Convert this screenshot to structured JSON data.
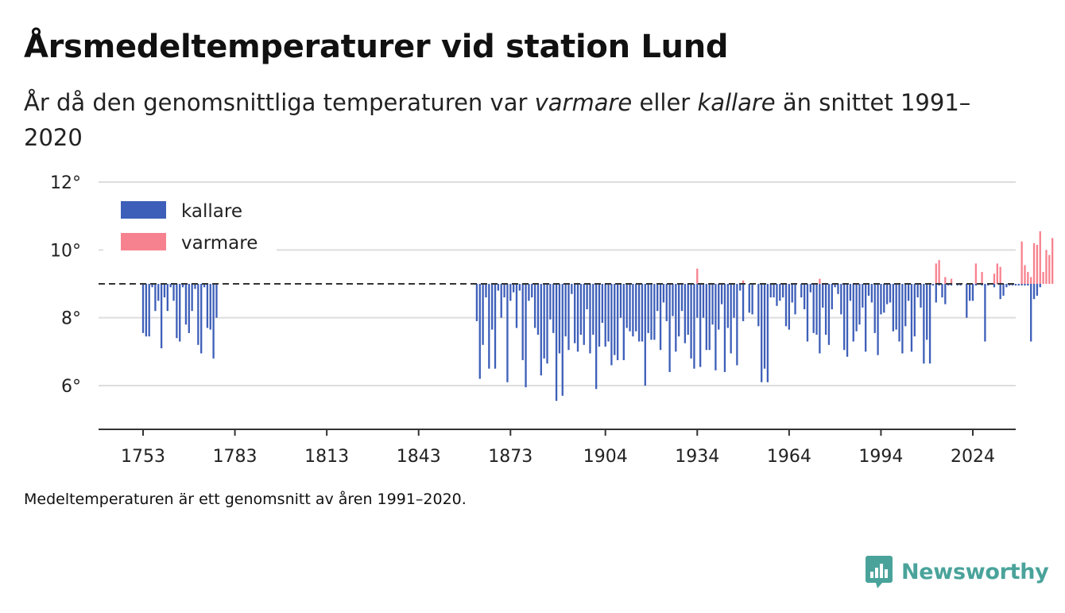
{
  "chart_data": {
    "type": "bar",
    "title": "Årsmedeltemperaturer vid station Lund",
    "subtitle_parts": [
      "År då den genomsnittliga temperaturen var ",
      "varmare",
      " eller ",
      "kallare",
      " än snittet 1991–2020"
    ],
    "footnote": "Medeltemperaturen är ett genomsnitt av åren 1991–2020.",
    "baseline": 9.0,
    "ylim": [
      4.8,
      12.3
    ],
    "yticks": [
      6,
      8,
      10,
      12
    ],
    "ytick_labels": [
      "6°",
      "8°",
      "10°",
      "12°"
    ],
    "xlim": [
      1739,
      2039
    ],
    "xticks": [
      1753,
      1783,
      1813,
      1843,
      1873,
      1904,
      1934,
      1964,
      1994,
      2024
    ],
    "xtick_labels": [
      "1753",
      "1783",
      "1813",
      "1843",
      "1873",
      "1904",
      "1934",
      "1964",
      "1994",
      "2024"
    ],
    "grid": true,
    "legend_placement": "top-left",
    "colors": {
      "kallare": "#3e5fb9",
      "varmare": "#f7828f",
      "baseline": "#333333",
      "grid": "#dddddd"
    },
    "legend": [
      "kallare",
      "varmare"
    ],
    "series": [
      {
        "name": "kallare",
        "color": "#3e5fb9",
        "points": [
          [
            1753,
            7.55
          ],
          [
            1754,
            7.45
          ],
          [
            1755,
            7.45
          ],
          [
            1756,
            8.9
          ],
          [
            1757,
            8.2
          ],
          [
            1758,
            8.5
          ],
          [
            1759,
            7.1
          ],
          [
            1760,
            8.6
          ],
          [
            1761,
            8.2
          ],
          [
            1762,
            8.9
          ],
          [
            1763,
            8.5
          ],
          [
            1764,
            7.4
          ],
          [
            1765,
            7.3
          ],
          [
            1766,
            8.9
          ],
          [
            1767,
            7.8
          ],
          [
            1768,
            7.55
          ],
          [
            1769,
            8.2
          ],
          [
            1770,
            8.85
          ],
          [
            1771,
            7.2
          ],
          [
            1772,
            6.95
          ],
          [
            1773,
            8.9
          ],
          [
            1774,
            7.7
          ],
          [
            1775,
            7.65
          ],
          [
            1776,
            6.8
          ],
          [
            1777,
            8.0
          ],
          [
            1862,
            7.9
          ],
          [
            1863,
            6.2
          ],
          [
            1864,
            7.2
          ],
          [
            1865,
            8.6
          ],
          [
            1866,
            6.5
          ],
          [
            1867,
            7.65
          ],
          [
            1868,
            6.5
          ],
          [
            1869,
            8.8
          ],
          [
            1870,
            8.0
          ],
          [
            1871,
            8.6
          ],
          [
            1872,
            6.1
          ],
          [
            1873,
            8.5
          ],
          [
            1874,
            8.75
          ],
          [
            1875,
            7.7
          ],
          [
            1876,
            8.8
          ],
          [
            1877,
            6.75
          ],
          [
            1878,
            5.95
          ],
          [
            1879,
            8.5
          ],
          [
            1880,
            8.6
          ],
          [
            1881,
            7.7
          ],
          [
            1882,
            7.5
          ],
          [
            1883,
            6.3
          ],
          [
            1884,
            6.8
          ],
          [
            1885,
            6.65
          ],
          [
            1886,
            7.95
          ],
          [
            1887,
            7.55
          ],
          [
            1888,
            5.55
          ],
          [
            1889,
            6.95
          ],
          [
            1890,
            5.7
          ],
          [
            1891,
            7.45
          ],
          [
            1892,
            7.05
          ],
          [
            1893,
            8.7
          ],
          [
            1894,
            7.25
          ],
          [
            1895,
            7.0
          ],
          [
            1896,
            7.5
          ],
          [
            1897,
            7.2
          ],
          [
            1898,
            8.25
          ],
          [
            1899,
            6.95
          ],
          [
            1900,
            7.5
          ],
          [
            1901,
            5.9
          ],
          [
            1902,
            7.15
          ],
          [
            1903,
            7.85
          ],
          [
            1904,
            7.15
          ],
          [
            1905,
            7.3
          ],
          [
            1906,
            6.6
          ],
          [
            1907,
            6.9
          ],
          [
            1908,
            6.75
          ],
          [
            1909,
            8.0
          ],
          [
            1910,
            6.75
          ],
          [
            1911,
            7.7
          ],
          [
            1912,
            7.6
          ],
          [
            1913,
            7.45
          ],
          [
            1914,
            7.6
          ],
          [
            1915,
            7.3
          ],
          [
            1916,
            7.3
          ],
          [
            1917,
            6.0
          ],
          [
            1918,
            7.55
          ],
          [
            1919,
            7.35
          ],
          [
            1920,
            7.35
          ],
          [
            1921,
            8.2
          ],
          [
            1922,
            7.05
          ],
          [
            1923,
            8.45
          ],
          [
            1924,
            7.9
          ],
          [
            1925,
            6.4
          ],
          [
            1926,
            8.05
          ],
          [
            1927,
            7.0
          ],
          [
            1928,
            7.45
          ],
          [
            1929,
            8.2
          ],
          [
            1930,
            7.25
          ],
          [
            1931,
            7.5
          ],
          [
            1932,
            6.8
          ],
          [
            1933,
            6.5
          ],
          [
            1934,
            8.0
          ],
          [
            1935,
            6.55
          ],
          [
            1936,
            8.0
          ],
          [
            1937,
            7.05
          ],
          [
            1938,
            7.05
          ],
          [
            1939,
            7.8
          ],
          [
            1940,
            6.45
          ],
          [
            1941,
            7.65
          ],
          [
            1942,
            8.4
          ],
          [
            1943,
            6.4
          ],
          [
            1944,
            7.7
          ],
          [
            1945,
            6.95
          ],
          [
            1946,
            8.0
          ],
          [
            1947,
            6.6
          ],
          [
            1948,
            8.8
          ],
          [
            1949,
            7.9
          ],
          [
            1951,
            8.15
          ],
          [
            1952,
            8.1
          ],
          [
            1954,
            7.75
          ],
          [
            1955,
            6.1
          ],
          [
            1956,
            6.5
          ],
          [
            1957,
            6.1
          ],
          [
            1958,
            8.6
          ],
          [
            1959,
            8.6
          ],
          [
            1960,
            8.35
          ],
          [
            1961,
            8.5
          ],
          [
            1962,
            8.6
          ],
          [
            1963,
            7.75
          ],
          [
            1964,
            7.65
          ],
          [
            1965,
            8.45
          ],
          [
            1966,
            8.1
          ],
          [
            1968,
            8.6
          ],
          [
            1969,
            8.25
          ],
          [
            1970,
            7.3
          ],
          [
            1971,
            8.75
          ],
          [
            1972,
            7.55
          ],
          [
            1973,
            7.5
          ],
          [
            1974,
            6.95
          ],
          [
            1975,
            8.3
          ],
          [
            1976,
            7.5
          ],
          [
            1977,
            7.2
          ],
          [
            1978,
            8.25
          ],
          [
            1979,
            8.9
          ],
          [
            1980,
            8.7
          ],
          [
            1981,
            8.1
          ],
          [
            1982,
            7.05
          ],
          [
            1983,
            6.85
          ],
          [
            1984,
            8.5
          ],
          [
            1985,
            7.3
          ],
          [
            1986,
            7.6
          ],
          [
            1987,
            7.8
          ],
          [
            1988,
            8.3
          ],
          [
            1989,
            7.0
          ],
          [
            1990,
            8.65
          ],
          [
            1991,
            8.45
          ],
          [
            1992,
            7.55
          ],
          [
            1993,
            6.9
          ],
          [
            1994,
            8.1
          ],
          [
            1995,
            8.15
          ],
          [
            1996,
            8.4
          ],
          [
            1997,
            8.45
          ],
          [
            1998,
            7.6
          ],
          [
            1999,
            7.65
          ],
          [
            2000,
            7.3
          ],
          [
            2001,
            6.95
          ],
          [
            2002,
            7.75
          ],
          [
            2003,
            8.5
          ],
          [
            2004,
            7.0
          ],
          [
            2005,
            7.45
          ],
          [
            2006,
            8.6
          ],
          [
            2007,
            8.3
          ],
          [
            2008,
            6.65
          ],
          [
            2009,
            7.35
          ],
          [
            2010,
            6.65
          ],
          [
            2011,
            8.95
          ],
          [
            2012,
            8.45
          ],
          [
            2013,
            8.95
          ],
          [
            2014,
            8.6
          ],
          [
            2015,
            8.4
          ],
          [
            2016,
            8.95
          ],
          [
            2017,
            8.95
          ],
          [
            2019,
            8.95
          ],
          [
            2020,
            8.95
          ],
          [
            2022,
            8.0
          ],
          [
            2023,
            8.5
          ],
          [
            2024,
            8.5
          ],
          [
            2025,
            8.95
          ],
          [
            2027,
            8.95
          ],
          [
            2028,
            7.3
          ],
          [
            2029,
            8.95
          ],
          [
            2031,
            8.9
          ],
          [
            2033,
            8.55
          ],
          [
            2034,
            8.65
          ],
          [
            2035,
            8.9
          ],
          [
            2036,
            8.95
          ],
          [
            2037,
            8.95
          ],
          [
            2038,
            8.95
          ],
          [
            2039,
            8.95
          ],
          [
            2040,
            8.95
          ],
          [
            2041,
            8.95
          ],
          [
            2042,
            8.95
          ],
          [
            2043,
            7.3
          ],
          [
            2044,
            8.55
          ],
          [
            2045,
            8.65
          ],
          [
            2046,
            8.9
          ]
        ]
      },
      {
        "name": "varmare",
        "color": "#f7828f",
        "points": [
          [
            1934,
            9.45
          ],
          [
            1949,
            9.1
          ],
          [
            1974,
            9.15
          ],
          [
            2012,
            9.6
          ],
          [
            2013,
            9.7
          ],
          [
            2015,
            9.2
          ],
          [
            2017,
            9.15
          ],
          [
            2025,
            9.6
          ],
          [
            2027,
            9.35
          ],
          [
            2031,
            9.3
          ],
          [
            2032,
            9.6
          ],
          [
            2033,
            9.5
          ],
          [
            2040,
            10.25
          ],
          [
            2041,
            9.55
          ],
          [
            2042,
            9.35
          ],
          [
            2043,
            9.2
          ],
          [
            2044,
            10.2
          ],
          [
            2045,
            10.15
          ],
          [
            2046,
            10.55
          ],
          [
            2047,
            9.35
          ],
          [
            2048,
            10.0
          ],
          [
            2049,
            9.85
          ],
          [
            2050,
            10.35
          ]
        ]
      }
    ]
  },
  "brand": {
    "name": "Newsworthy"
  }
}
